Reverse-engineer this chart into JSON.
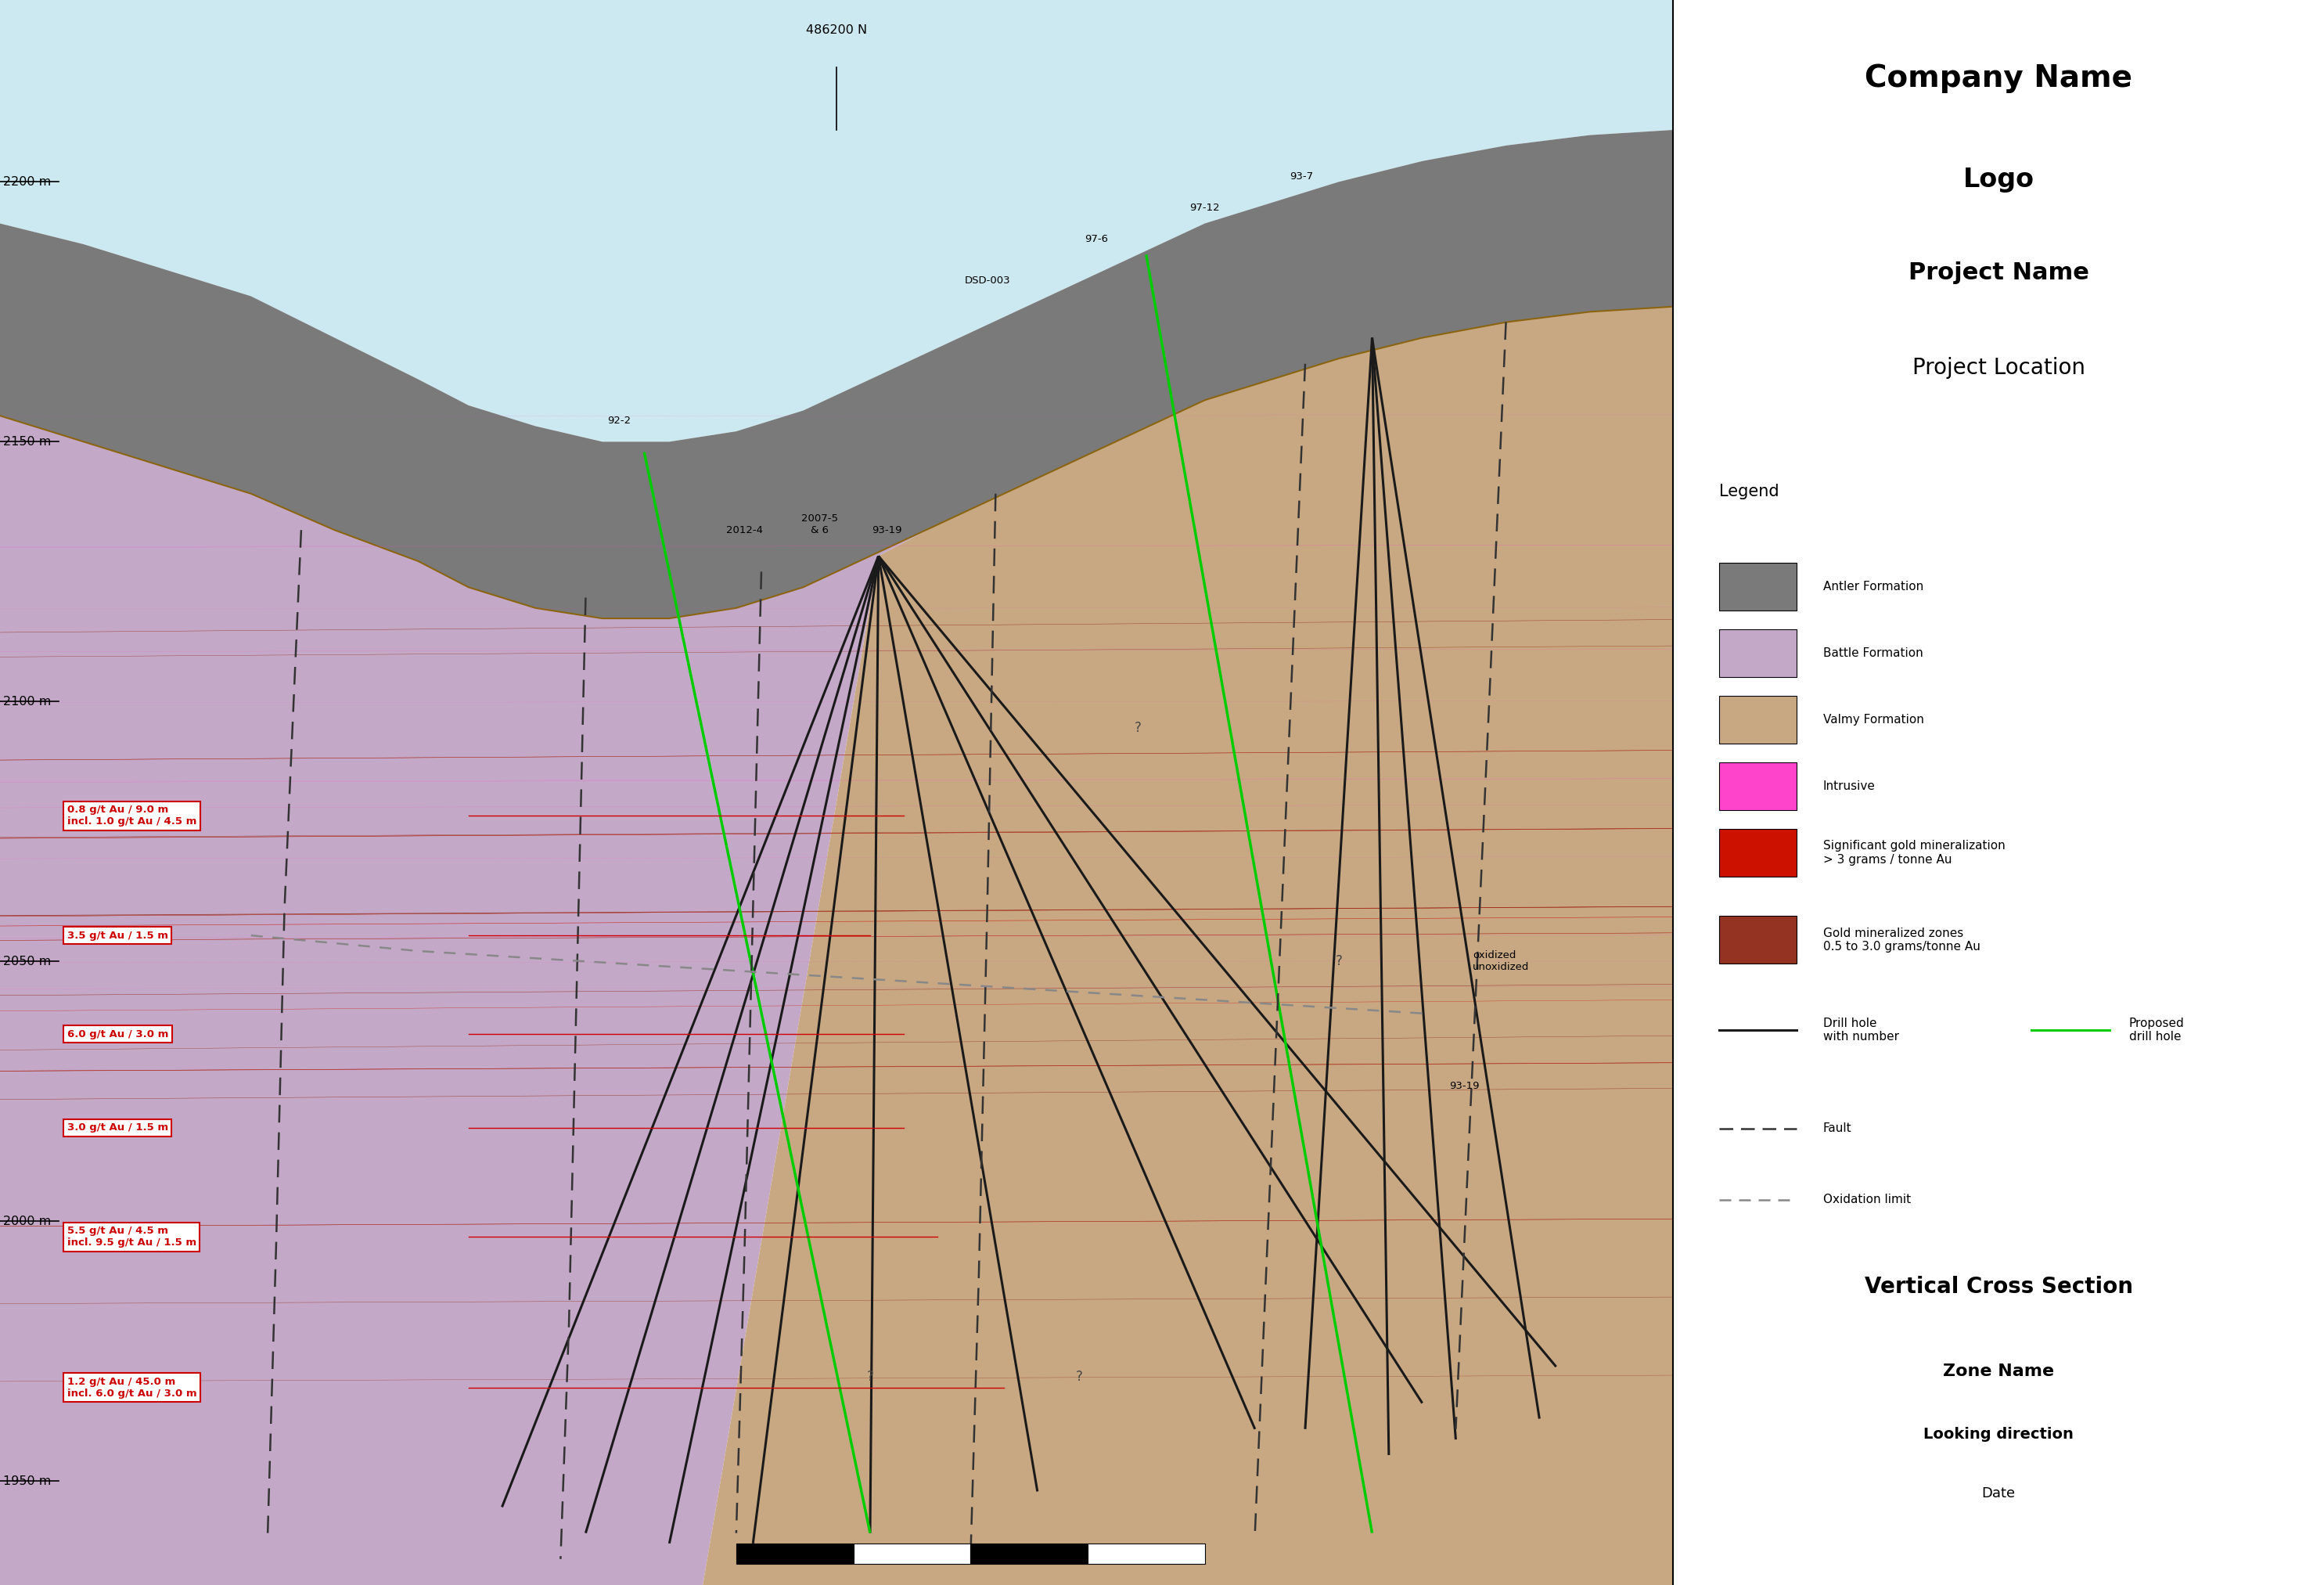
{
  "colors": {
    "sky": "#cce8f0",
    "antler": "#7a7a7a",
    "battle": "#c4a8c8",
    "valmy": "#c8a882",
    "intrusive": "#ff44cc",
    "sig_gold": "#cc1100",
    "gold_zone": "#943322",
    "background": "#ffffff",
    "drill_hole": "#1a1a1a",
    "proposed": "#00cc00",
    "fault_dash": "#333333",
    "oxidation_dash": "#888888",
    "contact_brown": "#8B6410"
  },
  "title_company": "Company Name",
  "title_logo": "Logo",
  "title_project": "Project Name",
  "title_location": "Project Location",
  "north_label": "486200 N",
  "elevation_labels": [
    "2200 m",
    "2150 m",
    "2100 m",
    "2050 m",
    "2000 m",
    "1950 m"
  ],
  "elevation_values": [
    2200,
    2150,
    2100,
    2050,
    2000,
    1950
  ],
  "assay_texts": [
    "0.8 g/t Au / 9.0 m\nincl. 1.0 g/t Au / 4.5 m",
    "3.5 g/t Au / 1.5 m",
    "6.0 g/t Au / 3.0 m",
    "3.0 g/t Au / 1.5 m",
    "5.5 g/t Au / 4.5 m\nincl. 9.5 g/t Au / 1.5 m",
    "1.2 g/t Au / 45.0 m\nincl. 6.0 g/t Au / 3.0 m"
  ],
  "assay_y": [
    2078,
    2055,
    2036,
    2018,
    1997,
    1968
  ],
  "section_title": "Vertical Cross Section",
  "zone_name": "Zone Name",
  "looking": "Looking direction",
  "date": "Date"
}
